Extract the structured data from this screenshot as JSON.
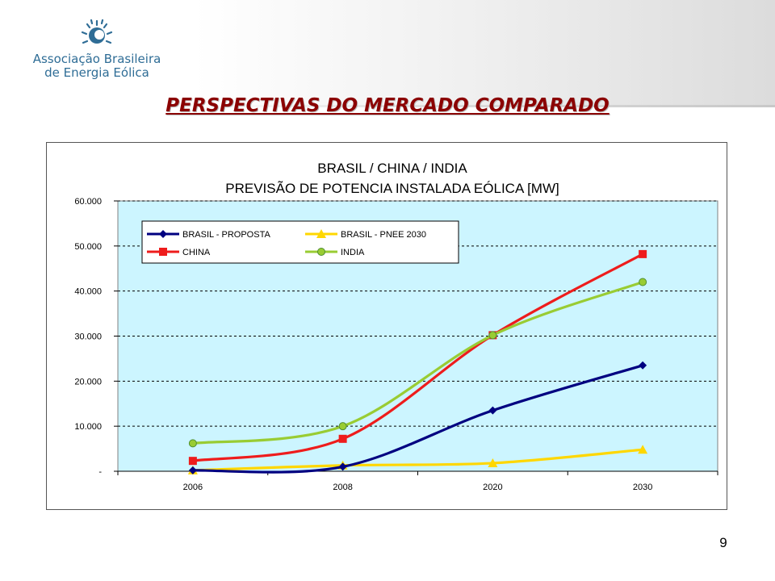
{
  "slide": {
    "title": "PERSPECTIVAS DO MERCADO COMPARADO",
    "page_number": "9"
  },
  "logo": {
    "line1": "Associação Brasileira",
    "line2": "de Energia Eólica",
    "icon": "wind-sun-logo-icon",
    "color": "#2f6d96"
  },
  "colors": {
    "plot_background": "#ccf5ff",
    "title_color": "#8b0000"
  },
  "chart_data": {
    "type": "line",
    "title": "BRASIL / CHINA / INDIA",
    "subtitle": "PREVISÃO DE POTENCIA INSTALADA EÓLICA [MW]",
    "categories": [
      "2006",
      "2008",
      "2020",
      "2030"
    ],
    "y_ticks": [
      0,
      10000,
      20000,
      30000,
      40000,
      50000,
      60000
    ],
    "y_tick_labels": [
      "-",
      "10.000",
      "20.000",
      "30.000",
      "40.000",
      "50.000",
      "60.000"
    ],
    "ylim": [
      0,
      60000
    ],
    "grid": "horizontal dashed",
    "legend_placement": "top-left",
    "series": [
      {
        "name": "BRASIL - PROPOSTA",
        "values": [
          200,
          1000,
          13500,
          23500
        ],
        "color": "#000080",
        "marker": "diamond"
      },
      {
        "name": "BRASIL - PNEE 2030",
        "values": [
          200,
          1300,
          1800,
          4800
        ],
        "color": "#ffd700",
        "marker": "triangle"
      },
      {
        "name": "CHINA",
        "values": [
          2300,
          7200,
          30200,
          48200
        ],
        "color": "#ee1c1c",
        "marker": "square"
      },
      {
        "name": "INDIA",
        "values": [
          6200,
          10000,
          30200,
          42000
        ],
        "color": "#99cc33",
        "marker": "circle"
      }
    ]
  }
}
